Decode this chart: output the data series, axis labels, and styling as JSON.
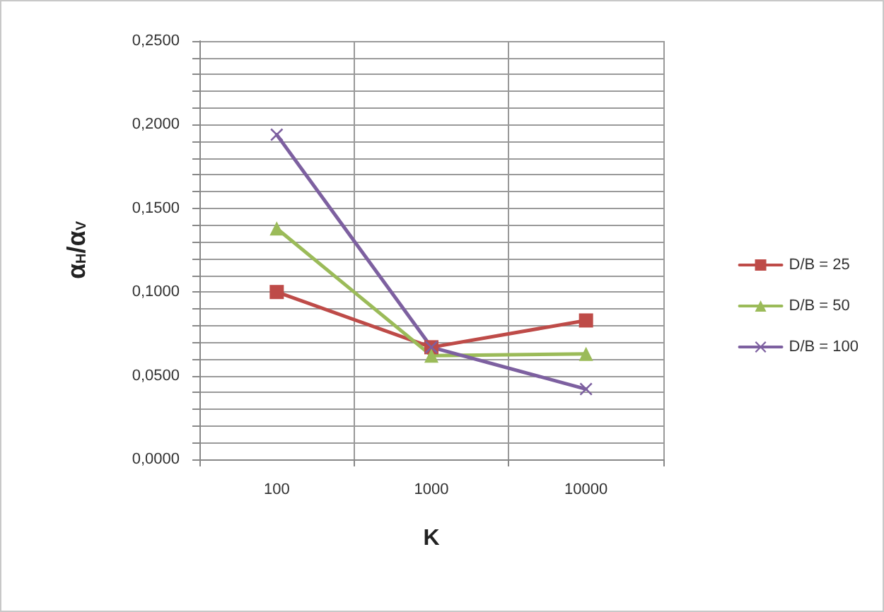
{
  "chart_data": {
    "type": "line",
    "xlabel": "K",
    "ylabel": "α$_{H}$/α$_{V}$",
    "categories": [
      "100",
      "1000",
      "10000"
    ],
    "series": [
      {
        "name": "D/B = 25",
        "color": "#be4b48",
        "marker": "square",
        "values": [
          0.1,
          0.067,
          0.083
        ]
      },
      {
        "name": "D/B = 50",
        "color": "#9bbb59",
        "marker": "triangle",
        "values": [
          0.138,
          0.062,
          0.063
        ]
      },
      {
        "name": "D/B = 100",
        "color": "#7d60a0",
        "marker": "cross",
        "values": [
          0.194,
          0.067,
          0.042
        ]
      }
    ],
    "ylim": [
      0,
      0.25
    ],
    "yticks": [
      {
        "value": 0,
        "label": "0,0000"
      },
      {
        "value": 0.01,
        "label": null
      },
      {
        "value": 0.02,
        "label": null
      },
      {
        "value": 0.03,
        "label": null
      },
      {
        "value": 0.04,
        "label": null
      },
      {
        "value": 0.05,
        "label": "0,0500"
      },
      {
        "value": 0.06,
        "label": null
      },
      {
        "value": 0.07,
        "label": null
      },
      {
        "value": 0.08,
        "label": null
      },
      {
        "value": 0.09,
        "label": null
      },
      {
        "value": 0.1,
        "label": "0,1000"
      },
      {
        "value": 0.11,
        "label": null
      },
      {
        "value": 0.12,
        "label": null
      },
      {
        "value": 0.13,
        "label": null
      },
      {
        "value": 0.14,
        "label": null
      },
      {
        "value": 0.15,
        "label": "0,1500"
      },
      {
        "value": 0.16,
        "label": null
      },
      {
        "value": 0.17,
        "label": null
      },
      {
        "value": 0.18,
        "label": null
      },
      {
        "value": 0.19,
        "label": null
      },
      {
        "value": 0.2,
        "label": "0,2000"
      },
      {
        "value": 0.21,
        "label": null
      },
      {
        "value": 0.22,
        "label": null
      },
      {
        "value": 0.23,
        "label": null
      },
      {
        "value": 0.24,
        "label": null
      },
      {
        "value": 0.25,
        "label": "0,2500"
      }
    ],
    "grid": true,
    "legend": "right",
    "line_style": "solid"
  }
}
